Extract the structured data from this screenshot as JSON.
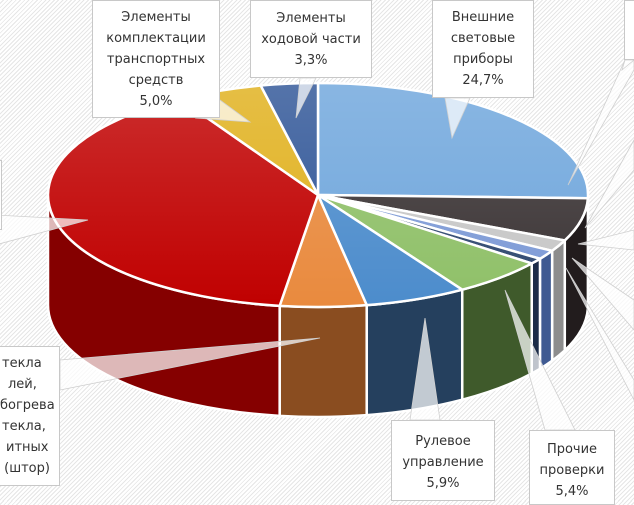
{
  "chart_data": {
    "type": "pie",
    "style": "3d-exploded-callouts",
    "title": "",
    "slices": [
      {
        "label": "Внешние световые приборы",
        "value": 24.7,
        "color": "#6fa6dc",
        "side": "#3d6a9a"
      },
      {
        "label": "",
        "value": 6.0,
        "color": "#3a3334",
        "side": "#221c1d"
      },
      {
        "label": "",
        "value": 1.6,
        "color": "#c7c7c7",
        "side": "#8d8d8d"
      },
      {
        "label": "",
        "value": 1.3,
        "color": "#7d9ad6",
        "side": "#3f5a92"
      },
      {
        "label": "",
        "value": 0.8,
        "color": "#2f4870",
        "side": "#1c2c48"
      },
      {
        "label": "Прочие проверки",
        "value": 5.4,
        "color": "#8fc068",
        "side": "#3f5a2b"
      },
      {
        "label": "Рулевое управление",
        "value": 5.9,
        "color": "#4c8ccc",
        "side": "#25405e"
      },
      {
        "label": "",
        "value": 5.0,
        "color": "#e98a3e",
        "side": "#8a4d20"
      },
      {
        "label": "Стекла ... обогрева стекла, ... защитных (штор)",
        "value": 38.0,
        "color": "#c00000",
        "side": "#850000"
      },
      {
        "label": "Элементы комплектации транспортных средств",
        "value": 5.0,
        "color": "#e0b01c",
        "side": "#8a6a0c"
      },
      {
        "label": "Элементы ходовой части",
        "value": 3.3,
        "color": "#2f5597",
        "side": "#1d355f"
      }
    ],
    "legend": "none",
    "data_labels": "callout-category-and-percent"
  },
  "callouts": {
    "ext_lights": {
      "lines": [
        "Внешние",
        "световые",
        "приборы",
        "24,7%"
      ]
    },
    "chassis": {
      "lines": [
        "Элементы",
        "ходовой части",
        "3,3%"
      ]
    },
    "equipment": {
      "lines": [
        "Элементы",
        "комплектации",
        "транспортных",
        "средств",
        "5,0%"
      ]
    },
    "glass": {
      "lines": [
        "текла",
        "лей,",
        "богрева",
        "текла,",
        "итных",
        " (штор)"
      ]
    },
    "steering": {
      "lines": [
        "Рулевое",
        "управление",
        "5,9%"
      ]
    },
    "other": {
      "lines": [
        "Прочие",
        "проверки",
        "5,4%"
      ]
    }
  }
}
